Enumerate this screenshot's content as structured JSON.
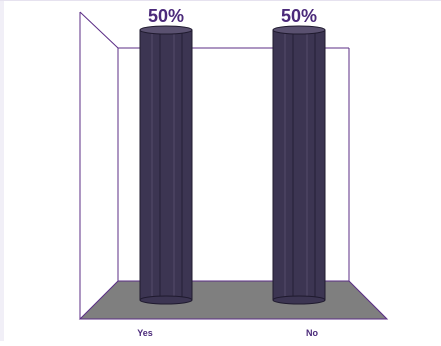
{
  "chart_data": {
    "type": "bar",
    "style": "3d-cylinder",
    "categories": [
      "Yes",
      "No"
    ],
    "series": [
      {
        "values": [
          50,
          50
        ]
      }
    ],
    "data_labels": [
      "50%",
      "50%"
    ],
    "ylim": [
      0,
      50
    ],
    "unit": "%",
    "title": "",
    "xlabel": "",
    "ylabel": "",
    "grid": false,
    "legend": "none",
    "colors": {
      "bar": "#3c3552",
      "bar_highlight": "#5a5170",
      "bar_edge": "#1f1a2e",
      "floor": "#7f7f7f",
      "wall_line": "#5b2d86",
      "label": "#4b2a7a",
      "tick_label": "#4b2a7a"
    }
  }
}
